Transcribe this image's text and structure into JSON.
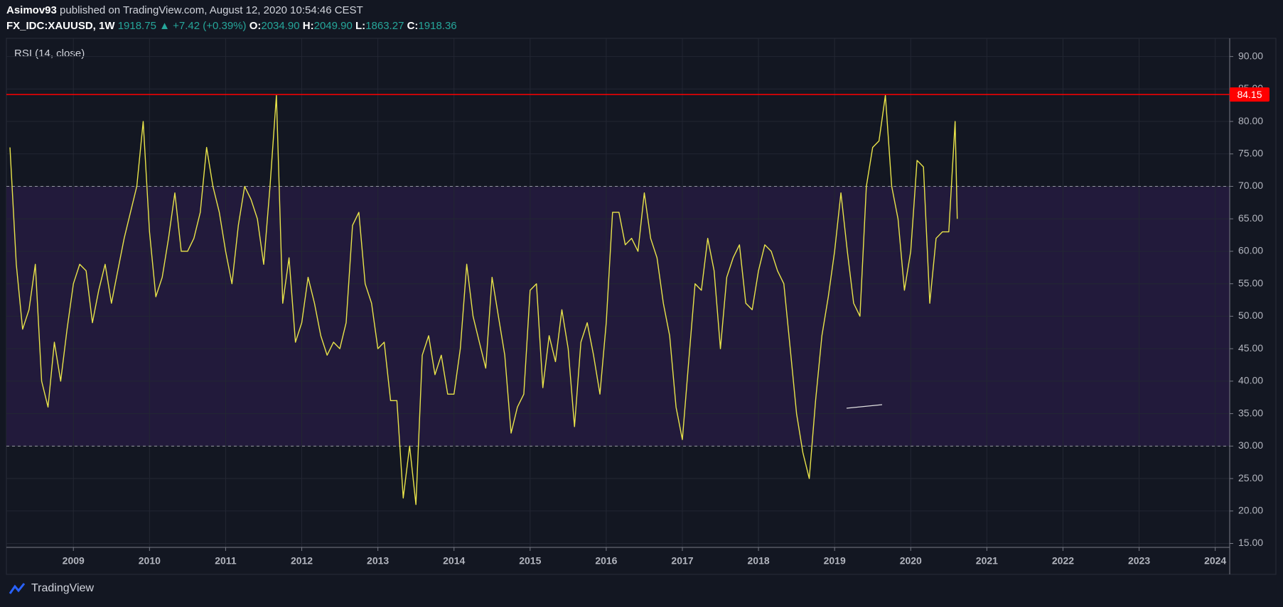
{
  "header": {
    "publisher": "Asimov93",
    "published": "published on TradingView.com, August 12, 2020 10:54:46 CEST",
    "symbol": "FX_IDC:XAUUSD, 1W",
    "last": "1918.75",
    "arrow": "▲",
    "change": "+7.42 (+0.39%)",
    "ohlc": [
      {
        "label": "O:",
        "value": "2034.90"
      },
      {
        "label": "H:",
        "value": "2049.90"
      },
      {
        "label": "L:",
        "value": "1863.27"
      },
      {
        "label": "C:",
        "value": "1918.36"
      }
    ]
  },
  "footer": {
    "brand": "TradingView"
  },
  "chart_data": {
    "type": "line",
    "xlim": [
      2008.12,
      2024.19
    ],
    "xticks": [
      2009,
      2010,
      2011,
      2012,
      2013,
      2014,
      2015,
      2016,
      2017,
      2018,
      2019,
      2020,
      2021,
      2022,
      2023,
      2024
    ],
    "ylim": [
      14.4,
      92.8
    ],
    "yticks": [
      {
        "value": 15,
        "label": "15.00"
      },
      {
        "value": 20,
        "label": "20.00"
      },
      {
        "value": 25,
        "label": "25.00"
      },
      {
        "value": 30,
        "label": "30.00"
      },
      {
        "value": 35,
        "label": "35.00"
      },
      {
        "value": 40,
        "label": "40.00"
      },
      {
        "value": 45,
        "label": "45.00"
      },
      {
        "value": 50,
        "label": "50.00"
      },
      {
        "value": 55,
        "label": "55.00"
      },
      {
        "value": 60,
        "label": "60.00"
      },
      {
        "value": 65,
        "label": "65.00"
      },
      {
        "value": 70,
        "label": "70.00"
      },
      {
        "value": 75,
        "label": "75.00"
      },
      {
        "value": 80,
        "label": "80.00"
      },
      {
        "value": 85,
        "label": "85.00"
      },
      {
        "value": 90,
        "label": "90.00"
      }
    ],
    "grid": true,
    "band": {
      "range": [
        30,
        70
      ],
      "color": "#221a3b",
      "line_color": "#9598a1"
    },
    "price_line": {
      "value": 84.15,
      "color": "#ff0000"
    },
    "x": [
      2008.167,
      2008.25,
      2008.333,
      2008.417,
      2008.5,
      2008.583,
      2008.667,
      2008.75,
      2008.833,
      2008.917,
      2009.0,
      2009.083,
      2009.167,
      2009.25,
      2009.333,
      2009.417,
      2009.5,
      2009.583,
      2009.667,
      2009.75,
      2009.833,
      2009.917,
      2010.0,
      2010.083,
      2010.167,
      2010.25,
      2010.333,
      2010.417,
      2010.5,
      2010.583,
      2010.667,
      2010.75,
      2010.833,
      2010.917,
      2011.0,
      2011.083,
      2011.167,
      2011.25,
      2011.333,
      2011.417,
      2011.5,
      2011.583,
      2011.667,
      2011.75,
      2011.833,
      2011.917,
      2012.0,
      2012.083,
      2012.167,
      2012.25,
      2012.333,
      2012.417,
      2012.5,
      2012.583,
      2012.667,
      2012.75,
      2012.833,
      2012.917,
      2013.0,
      2013.083,
      2013.167,
      2013.25,
      2013.333,
      2013.417,
      2013.5,
      2013.583,
      2013.667,
      2013.75,
      2013.833,
      2013.917,
      2014.0,
      2014.083,
      2014.167,
      2014.25,
      2014.333,
      2014.417,
      2014.5,
      2014.583,
      2014.667,
      2014.75,
      2014.833,
      2014.917,
      2015.0,
      2015.083,
      2015.167,
      2015.25,
      2015.333,
      2015.417,
      2015.5,
      2015.583,
      2015.667,
      2015.75,
      2015.833,
      2015.917,
      2016.0,
      2016.083,
      2016.167,
      2016.25,
      2016.333,
      2016.417,
      2016.5,
      2016.583,
      2016.667,
      2016.75,
      2016.833,
      2016.917,
      2017.0,
      2017.083,
      2017.167,
      2017.25,
      2017.333,
      2017.417,
      2017.5,
      2017.583,
      2017.667,
      2017.75,
      2017.833,
      2017.917,
      2018.0,
      2018.083,
      2018.167,
      2018.25,
      2018.333,
      2018.417,
      2018.5,
      2018.583,
      2018.667,
      2018.75,
      2018.833,
      2018.917,
      2019.0,
      2019.083,
      2019.167,
      2019.25,
      2019.333,
      2019.417,
      2019.5,
      2019.583,
      2019.667,
      2019.75,
      2019.833,
      2019.917,
      2020.0,
      2020.083,
      2020.167,
      2020.25,
      2020.333,
      2020.417,
      2020.5,
      2020.583,
      2020.611
    ],
    "series": [
      {
        "name": "RSI (14, close)",
        "color": "#e9e44a",
        "values": [
          76,
          58,
          48,
          51,
          58,
          40,
          36,
          46,
          40,
          48,
          55,
          58,
          57,
          49,
          54,
          58,
          52,
          57,
          62,
          66,
          70,
          80,
          63,
          53,
          56,
          62,
          69,
          60,
          60,
          62,
          66,
          76,
          70,
          66,
          60,
          55,
          64,
          70,
          68,
          65,
          58,
          70,
          84,
          52,
          59,
          46,
          49,
          56,
          52,
          47,
          44,
          46,
          45,
          49,
          64,
          66,
          55,
          52,
          45,
          46,
          37,
          37,
          22,
          30,
          21,
          44,
          47,
          41,
          44,
          38,
          38,
          45,
          58,
          50,
          46,
          42,
          56,
          50,
          44,
          32,
          36,
          38,
          54,
          55,
          39,
          47,
          43,
          51,
          45,
          33,
          46,
          49,
          44,
          38,
          49,
          66,
          66,
          61,
          62,
          60,
          69,
          62,
          59,
          52,
          47,
          36,
          31,
          43,
          55,
          54,
          62,
          57,
          45,
          56,
          59,
          61,
          52,
          51,
          57,
          61,
          60,
          57,
          55,
          45,
          35,
          29,
          25,
          37,
          47,
          53,
          60,
          69,
          60,
          52,
          50,
          70,
          76,
          77,
          84,
          70,
          65,
          54,
          60,
          74,
          73,
          52,
          62,
          63,
          63,
          80,
          65
        ]
      }
    ]
  }
}
